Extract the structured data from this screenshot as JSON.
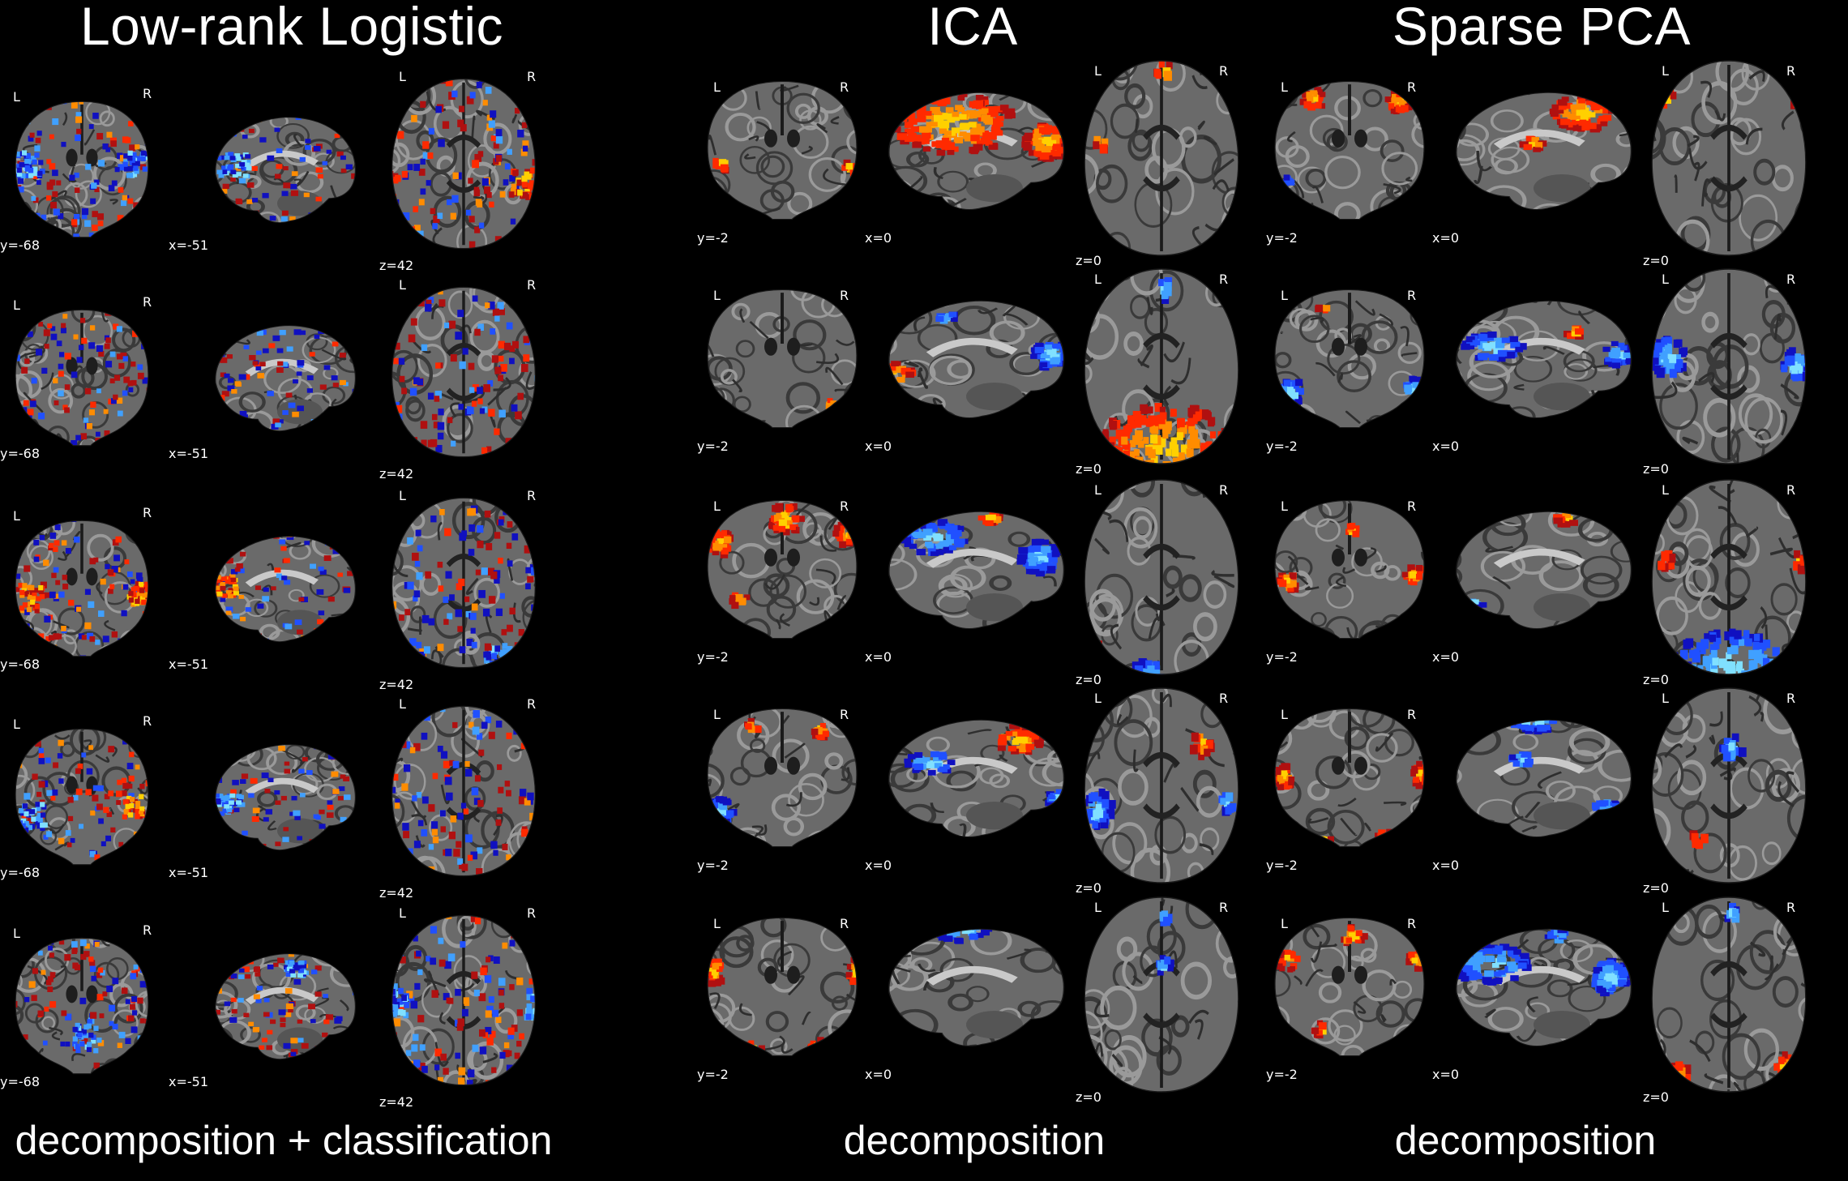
{
  "titles": {
    "lowrank": "Low-rank Logistic",
    "ica": "ICA",
    "spca": "Sparse PCA"
  },
  "captions": {
    "lowrank": "decomposition + classification",
    "ica": "decomposition",
    "spca": "decomposition"
  },
  "orientation": {
    "left": "L",
    "right": "R"
  },
  "lowrank_coords": {
    "coronal": "y=-68",
    "sagittal": "x=-51",
    "axial": "z=42"
  },
  "decomp_coords": {
    "coronal": "y=-2",
    "sagittal": "x=0",
    "axial": "z=0"
  },
  "colors": {
    "background": "#000000",
    "positive": [
      "#b01010",
      "#ff2a00",
      "#ff8c00",
      "#ffd000"
    ],
    "negative": [
      "#1010c0",
      "#2050ff",
      "#40a0ff",
      "#80e0ff"
    ]
  },
  "rows": 5
}
